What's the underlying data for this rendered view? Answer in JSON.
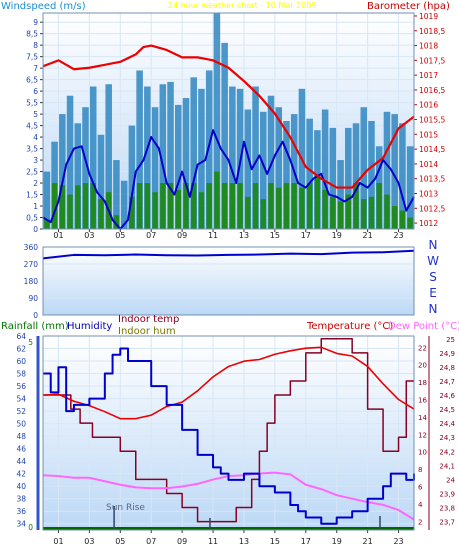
{
  "chart_data": [
    {
      "type": "line",
      "title": "24 hour weather chart - 10 Mar 2009",
      "ylabel_left": "Windspeed (m/s)",
      "ylabel_right": "Barometer (hpa)",
      "x_ticks": [
        "01",
        "03",
        "05",
        "07",
        "09",
        "11",
        "13",
        "15",
        "17",
        "19",
        "21",
        "23"
      ],
      "y_left_ticks": [
        "0",
        "0,5",
        "1",
        "1,5",
        "2",
        "2,5",
        "3",
        "3,5",
        "4",
        "4,5",
        "5",
        "5,5",
        "6",
        "6,5",
        "7",
        "7,5",
        "8",
        "8,5",
        "9"
      ],
      "y_right_ticks": [
        "1012",
        "1012,5",
        "1013",
        "1013,5",
        "1014",
        "1014,5",
        "1015",
        "1015,5",
        "1016",
        "1016,5",
        "1017",
        "1017,5",
        "1018",
        "1018,5",
        "1019"
      ],
      "ylim_left": [
        0,
        9.4
      ],
      "ylim_right": [
        1011.8,
        1019.1
      ],
      "colors": {
        "gust": "#2f86c0",
        "average": "#1f8a1f",
        "wind_avg_line": "#0000cc",
        "barometer": "#ee0000"
      },
      "series": [
        {
          "name": "Barometer",
          "axis": "right",
          "x": [
            0,
            1,
            2,
            3,
            4,
            5,
            6,
            6.5,
            7,
            8,
            9,
            10,
            11,
            12,
            13,
            14,
            15,
            16,
            17,
            18,
            19,
            20,
            21,
            22,
            23,
            24
          ],
          "values": [
            1017.3,
            1017.5,
            1017.2,
            1017.25,
            1017.35,
            1017.45,
            1017.7,
            1017.95,
            1018.0,
            1017.85,
            1017.6,
            1017.6,
            1017.5,
            1017.25,
            1016.8,
            1016.3,
            1015.7,
            1014.9,
            1013.9,
            1013.5,
            1013.2,
            1013.2,
            1013.8,
            1014.2,
            1015.2,
            1015.6
          ]
        },
        {
          "name": "Wind average",
          "axis": "left",
          "x": [
            0,
            0.5,
            1,
            1.5,
            2,
            2.5,
            3,
            3.5,
            4,
            4.5,
            5,
            5.5,
            6,
            6.5,
            7,
            7.5,
            8,
            8.5,
            9,
            9.5,
            10,
            10.5,
            11,
            11.5,
            12,
            12.5,
            13,
            13.5,
            14,
            14.5,
            15,
            15.5,
            16,
            16.5,
            17,
            17.5,
            18,
            18.5,
            19,
            19.5,
            20,
            20.5,
            21,
            21.5,
            22,
            22.5,
            23,
            23.5,
            24
          ],
          "values": [
            0.5,
            0.3,
            1.2,
            2.8,
            3.5,
            3.6,
            2.4,
            1.6,
            1.2,
            0.4,
            0.0,
            0.4,
            2.5,
            3.0,
            4.0,
            3.5,
            2.0,
            1.5,
            2.5,
            1.4,
            2.8,
            3.0,
            4.3,
            3.5,
            3.0,
            2.0,
            3.8,
            2.6,
            3.2,
            2.4,
            3.2,
            3.8,
            3.0,
            2.0,
            1.8,
            2.2,
            2.4,
            1.5,
            1.4,
            1.2,
            1.4,
            2.0,
            1.8,
            2.2,
            3.0,
            2.6,
            2.0,
            0.8,
            1.4
          ]
        },
        {
          "name": "Gust max",
          "axis": "left",
          "style": "bars",
          "values": [
            2.5,
            3.8,
            5.0,
            5.8,
            4.6,
            5.3,
            6.2,
            4.1,
            6.3,
            3.0,
            2.1,
            4.5,
            6.9,
            6.2,
            5.3,
            6.3,
            6.4,
            5.4,
            5.7,
            6.6,
            6.1,
            6.9,
            9.4,
            8.1,
            6.2,
            6.1,
            5.2,
            6.2,
            5.1,
            5.8,
            5.3,
            4.7,
            5.0,
            6.1,
            4.8,
            4.3,
            5.2,
            4.4,
            3.0,
            4.4,
            4.6,
            5.3,
            4.7,
            3.6,
            5.1,
            5.0,
            4.6,
            3.6
          ]
        },
        {
          "name": "Average max",
          "axis": "left",
          "style": "bars",
          "values": [
            0.4,
            2.0,
            1.9,
            1.5,
            1.9,
            2.0,
            2.0,
            1.3,
            1.6,
            0.6,
            0.0,
            1.4,
            2.0,
            2.0,
            1.6,
            2.0,
            2.0,
            1.7,
            2.0,
            2.0,
            1.6,
            2.0,
            2.5,
            2.0,
            2.0,
            2.0,
            1.4,
            2.0,
            1.3,
            2.0,
            1.8,
            2.0,
            2.0,
            1.8,
            2.0,
            2.3,
            1.7,
            1.4,
            1.2,
            1.5,
            2.0,
            1.3,
            1.4,
            2.0,
            1.5,
            1.0,
            0.8,
            0.5
          ]
        }
      ]
    },
    {
      "type": "line",
      "ylabel_right": "N W S E N",
      "compass": [
        "N",
        "W",
        "S",
        "E",
        "N"
      ],
      "y_ticks": [
        "0",
        "90",
        "180",
        "270",
        "360"
      ],
      "ylim": [
        0,
        360
      ],
      "series": [
        {
          "name": "Wind direction",
          "x": [
            0,
            2,
            4,
            6,
            8,
            10,
            12,
            14,
            16,
            18,
            20,
            22,
            24
          ],
          "values": [
            300,
            318,
            316,
            320,
            316,
            315,
            318,
            320,
            325,
            322,
            330,
            332,
            340
          ]
        }
      ]
    },
    {
      "type": "line",
      "labels": {
        "rainfall": "Rainfall (mm)",
        "humidity": "Humidity",
        "indoor_temp": "Indoor temp",
        "indoor_hum": "Indoor hum",
        "temperature": "Temperature (°C)",
        "dew_point": "Dew Point (°C)",
        "sunrise": "Sun Rise"
      },
      "x_ticks": [
        "01",
        "03",
        "05",
        "07",
        "09",
        "11",
        "13",
        "15",
        "17",
        "19",
        "21",
        "23"
      ],
      "y_humidity_ticks": [
        "34",
        "36",
        "38",
        "40",
        "42",
        "44",
        "46",
        "48",
        "50",
        "52",
        "54",
        "56",
        "58",
        "60",
        "62",
        "64"
      ],
      "y_rain_ticks": [
        "0",
        "5"
      ],
      "y_temp_ticks": [
        "2",
        "4",
        "6",
        "8",
        "10",
        "12",
        "14",
        "16",
        "18",
        "20",
        "22"
      ],
      "y_indoor_ticks": [
        "23,7",
        "23,8",
        "23,9",
        "24",
        "24,1",
        "24,2",
        "24,3",
        "24,4",
        "24,5",
        "24,6",
        "24,7",
        "24,8",
        "24,9",
        "25"
      ],
      "ylim_humidity": [
        33,
        64
      ],
      "ylim_temp": [
        1,
        23.3
      ],
      "ylim_indoor": [
        23.64,
        25.02
      ],
      "colors": {
        "humidity": "#0000cc",
        "temperature": "#ee0000",
        "dew_point": "#ff66ff",
        "indoor": "#880022",
        "rainfall": "#006600"
      },
      "series": [
        {
          "name": "Humidity",
          "axis": "humidity",
          "x": [
            0,
            0.5,
            1,
            1.5,
            2,
            3,
            4,
            4.5,
            5,
            5.5,
            6,
            7,
            8,
            9,
            10,
            11,
            11.5,
            12,
            13,
            14,
            15,
            16,
            16.5,
            17,
            18,
            18.5,
            19,
            20,
            21,
            22,
            22.5,
            23,
            23.5,
            24
          ],
          "values": [
            58,
            55,
            59,
            52,
            53,
            54,
            58,
            61,
            62,
            60,
            60,
            56,
            53,
            49,
            45,
            43,
            42,
            41,
            42,
            40,
            39,
            37,
            36,
            35,
            34,
            34,
            35,
            36,
            38,
            40,
            42,
            42,
            41,
            42
          ]
        },
        {
          "name": "Temperature",
          "axis": "temp",
          "x": [
            0,
            1,
            2,
            3,
            4,
            5,
            6,
            7,
            8,
            9,
            10,
            11,
            12,
            13,
            14,
            15,
            16,
            17,
            18,
            19,
            20,
            21,
            22,
            23,
            24
          ],
          "values": [
            16.5,
            16.6,
            15.8,
            15.3,
            14.6,
            13.8,
            13.8,
            14.2,
            15.2,
            15.7,
            17.0,
            18.6,
            19.8,
            20.4,
            20.6,
            21.2,
            21.6,
            21.9,
            22.0,
            21.3,
            21.0,
            19.8,
            17.8,
            16.0,
            14.9
          ]
        },
        {
          "name": "Dew Point",
          "axis": "temp",
          "x": [
            0,
            1,
            2,
            3,
            4,
            5,
            6,
            7,
            8,
            9,
            10,
            11,
            12,
            13,
            14,
            15,
            16,
            17,
            18,
            19,
            20,
            21,
            22,
            23,
            24
          ],
          "values": [
            7.3,
            7.2,
            7.0,
            7.0,
            6.6,
            6.2,
            5.9,
            5.8,
            5.8,
            6.0,
            6.3,
            6.8,
            7.2,
            7.3,
            7.5,
            7.6,
            7.4,
            6.2,
            5.7,
            5.0,
            4.6,
            4.2,
            3.9,
            3.3,
            2.2
          ]
        },
        {
          "name": "Indoor temp",
          "axis": "indoor",
          "style": "step",
          "x": [
            0,
            1.2,
            1.8,
            2.4,
            3.2,
            4.0,
            5.0,
            6.0,
            8.0,
            9.0,
            10.0,
            11.0,
            11.5,
            12.5,
            13.5,
            14.0,
            14.5,
            15.0,
            16.0,
            17.0,
            18.0,
            19.0,
            20.0,
            21.0,
            22.0,
            23.0,
            23.5,
            24.0
          ],
          "values": [
            24.6,
            24.6,
            24.5,
            24.4,
            24.3,
            24.3,
            24.2,
            24.0,
            23.9,
            23.8,
            23.7,
            23.7,
            23.7,
            23.8,
            24.0,
            24.2,
            24.4,
            24.6,
            24.7,
            24.9,
            25.0,
            25.0,
            24.9,
            24.5,
            24.2,
            24.3,
            24.7,
            24.7
          ]
        },
        {
          "name": "Rainfall",
          "axis": "rain",
          "x": [
            0,
            24
          ],
          "values": [
            0,
            0
          ]
        }
      ],
      "sunrise_hour": 4.6
    }
  ]
}
